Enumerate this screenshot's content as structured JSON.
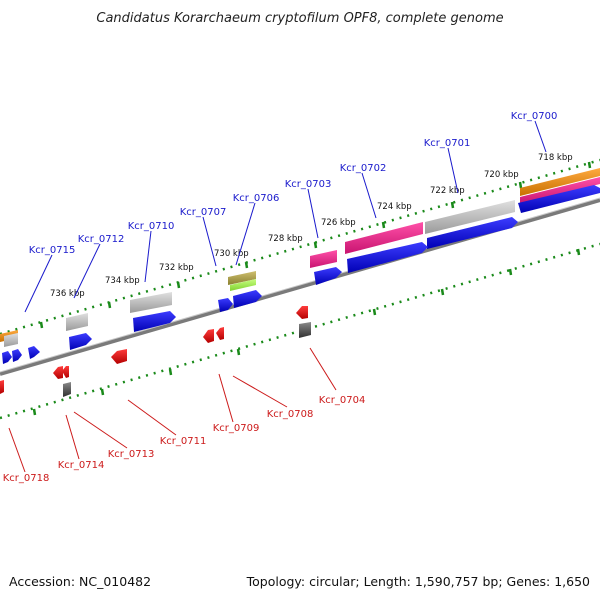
{
  "title": "Candidatus Korarchaeum cryptofilum OPF8, complete genome",
  "footer": {
    "accession": "Accession: NC_010482",
    "summary": "Topology: circular; Length: 1,590,757 bp; Genes: 1,650"
  },
  "colors": {
    "forward_gene": "#0a0ae0",
    "reverse_gene": "#e00000",
    "backbone": "#7a7a7a",
    "tick": "#1a8a1a",
    "fwd_label": "#1a1acc",
    "rev_label": "#cc1a1a",
    "pink": "#f0288c",
    "gray_feature": "#b4b4b4",
    "orange": "#f08c14",
    "olive": "#a8a040",
    "lime": "#a0f050",
    "dark_gray": "#505050"
  },
  "kbp_ticks": [
    "718 kbp",
    "720 kbp",
    "722 kbp",
    "724 kbp",
    "726 kbp",
    "728 kbp",
    "730 kbp",
    "732 kbp",
    "734 kbp",
    "736 kbp"
  ],
  "forward_labels": [
    "Kcr_0700",
    "Kcr_0701",
    "Kcr_0702",
    "Kcr_0703",
    "Kcr_0706",
    "Kcr_0707",
    "Kcr_0710",
    "Kcr_0712",
    "Kcr_0715"
  ],
  "reverse_labels": [
    "Kcr_0704",
    "Kcr_0708",
    "Kcr_0709",
    "Kcr_0711",
    "Kcr_0713",
    "Kcr_0714",
    "Kcr_0718"
  ]
}
